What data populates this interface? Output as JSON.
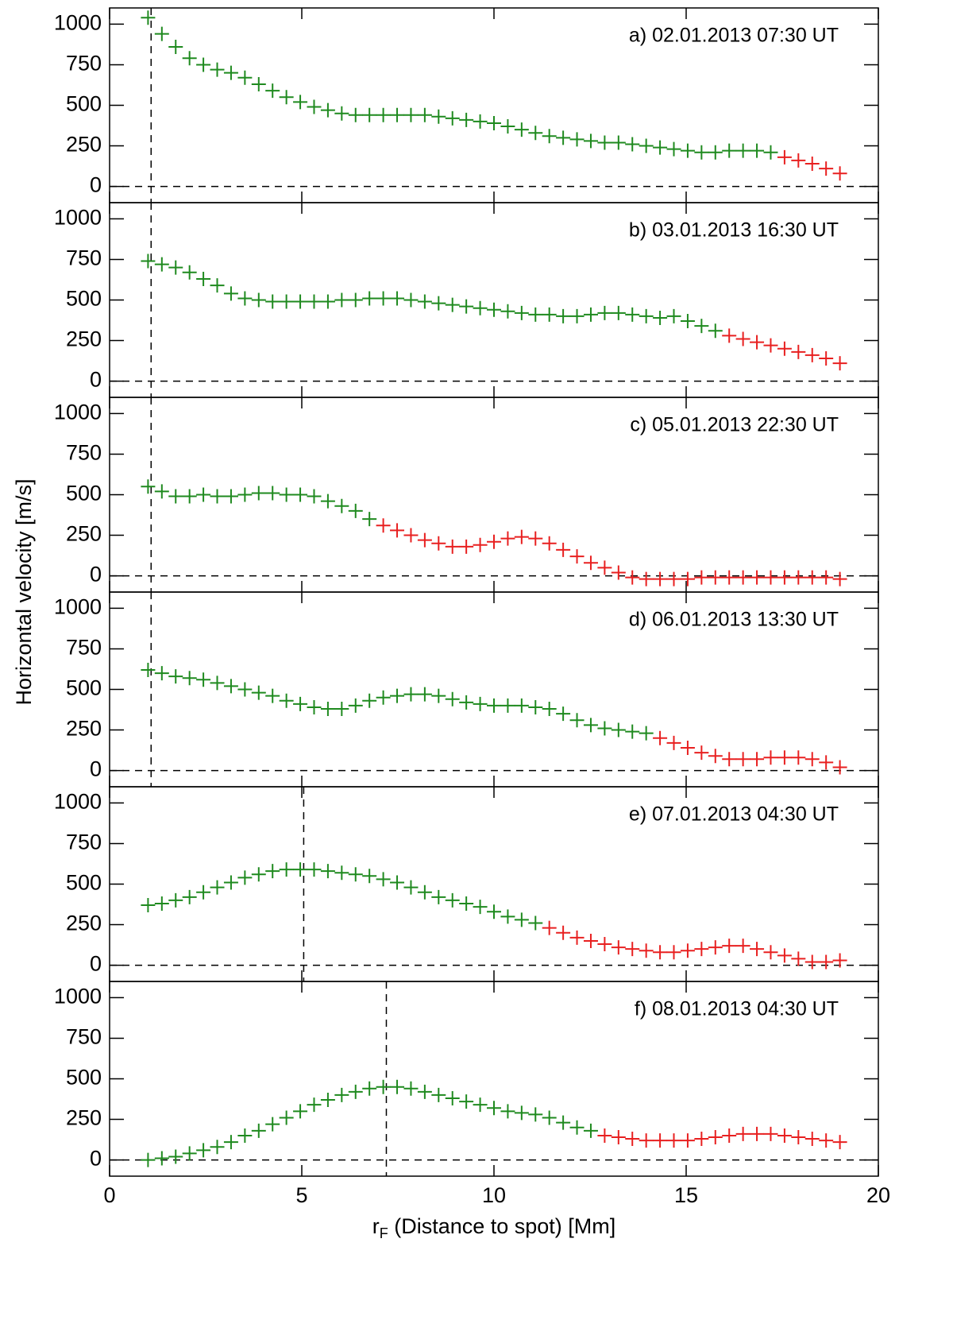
{
  "ylabel": "Horizontal velocity [m/s]",
  "xlabel": {
    "symbol": "r",
    "subscript": "F",
    "text": " (Distance to spot) [Mm]"
  },
  "chart_data": [
    {
      "type": "scatter",
      "annotation": "a) 02.01.2013  07:30 UT",
      "xlim": [
        0,
        20
      ],
      "xticks": [
        0,
        5,
        10,
        15,
        20
      ],
      "ylim": [
        -100,
        1100
      ],
      "yticks": [
        0,
        250,
        500,
        750,
        1000
      ],
      "vline": 1.08,
      "hline": 0,
      "series": [
        {
          "color": "#1f8a1f",
          "x": [
            1.0,
            1.36,
            1.72,
            2.08,
            2.44,
            2.8,
            3.16,
            3.52,
            3.88,
            4.24,
            4.6,
            4.96,
            5.32,
            5.68,
            6.04,
            6.4,
            6.76,
            7.12,
            7.48,
            7.84,
            8.2,
            8.56,
            8.92,
            9.28,
            9.64,
            10.0,
            10.36,
            10.72,
            11.08,
            11.44,
            11.8,
            12.16,
            12.52,
            12.88,
            13.24,
            13.6,
            13.96,
            14.32,
            14.68,
            15.04,
            15.4,
            15.76,
            16.12,
            16.48,
            16.84,
            17.2
          ],
          "values": [
            1040,
            940,
            860,
            790,
            750,
            720,
            700,
            670,
            630,
            590,
            550,
            520,
            490,
            470,
            450,
            440,
            440,
            440,
            440,
            440,
            440,
            430,
            420,
            410,
            400,
            390,
            370,
            350,
            330,
            310,
            300,
            290,
            280,
            270,
            270,
            260,
            250,
            240,
            230,
            220,
            210,
            210,
            220,
            220,
            220,
            210
          ]
        },
        {
          "color": "#e82020",
          "x": [
            17.56,
            17.92,
            18.28,
            18.64,
            19.0
          ],
          "values": [
            180,
            160,
            140,
            110,
            80
          ]
        }
      ]
    },
    {
      "type": "scatter",
      "annotation": "b) 03.01.2013  16:30 UT",
      "xlim": [
        0,
        20
      ],
      "xticks": [
        0,
        5,
        10,
        15,
        20
      ],
      "ylim": [
        -100,
        1100
      ],
      "yticks": [
        0,
        250,
        500,
        750,
        1000
      ],
      "vline": 1.08,
      "hline": 0,
      "series": [
        {
          "color": "#1f8a1f",
          "x": [
            1.0,
            1.36,
            1.72,
            2.08,
            2.44,
            2.8,
            3.16,
            3.52,
            3.88,
            4.24,
            4.6,
            4.96,
            5.32,
            5.68,
            6.04,
            6.4,
            6.76,
            7.12,
            7.48,
            7.84,
            8.2,
            8.56,
            8.92,
            9.28,
            9.64,
            10.0,
            10.36,
            10.72,
            11.08,
            11.44,
            11.8,
            12.16,
            12.52,
            12.88,
            13.24,
            13.6,
            13.96,
            14.32,
            14.68,
            15.04,
            15.4,
            15.76
          ],
          "values": [
            740,
            720,
            700,
            670,
            630,
            590,
            540,
            510,
            500,
            490,
            490,
            490,
            490,
            490,
            500,
            500,
            510,
            510,
            510,
            500,
            490,
            480,
            470,
            460,
            450,
            440,
            430,
            420,
            410,
            410,
            400,
            400,
            410,
            420,
            420,
            410,
            400,
            390,
            400,
            370,
            340,
            310
          ]
        },
        {
          "color": "#e82020",
          "x": [
            16.12,
            16.48,
            16.84,
            17.2,
            17.56,
            17.92,
            18.28,
            18.64,
            19.0
          ],
          "values": [
            280,
            260,
            240,
            220,
            200,
            180,
            160,
            140,
            110
          ]
        }
      ]
    },
    {
      "type": "scatter",
      "annotation": "c) 05.01.2013  22:30 UT",
      "xlim": [
        0,
        20
      ],
      "xticks": [
        0,
        5,
        10,
        15,
        20
      ],
      "ylim": [
        -100,
        1100
      ],
      "yticks": [
        0,
        250,
        500,
        750,
        1000
      ],
      "vline": 1.08,
      "hline": 0,
      "series": [
        {
          "color": "#1f8a1f",
          "x": [
            1.0,
            1.36,
            1.72,
            2.08,
            2.44,
            2.8,
            3.16,
            3.52,
            3.88,
            4.24,
            4.6,
            4.96,
            5.32,
            5.68,
            6.04,
            6.4,
            6.76
          ],
          "values": [
            550,
            520,
            490,
            490,
            500,
            490,
            490,
            500,
            510,
            510,
            500,
            500,
            490,
            460,
            430,
            400,
            350
          ]
        },
        {
          "color": "#e82020",
          "x": [
            7.12,
            7.48,
            7.84,
            8.2,
            8.56,
            8.92,
            9.28,
            9.64,
            10.0,
            10.36,
            10.72,
            11.08,
            11.44,
            11.8,
            12.16,
            12.52,
            12.88,
            13.24,
            13.6,
            13.96,
            14.32,
            14.68,
            15.04,
            15.4,
            15.76,
            16.12,
            16.48,
            16.84,
            17.2,
            17.56,
            17.92,
            18.28,
            18.64,
            19.0
          ],
          "values": [
            310,
            280,
            250,
            220,
            200,
            180,
            180,
            190,
            210,
            230,
            240,
            230,
            200,
            160,
            120,
            80,
            50,
            20,
            -10,
            -20,
            -20,
            -20,
            -20,
            -10,
            -10,
            -10,
            -10,
            -10,
            -10,
            -10,
            -10,
            -10,
            -10,
            -20
          ]
        }
      ]
    },
    {
      "type": "scatter",
      "annotation": "d) 06.01.2013  13:30 UT",
      "xlim": [
        0,
        20
      ],
      "xticks": [
        0,
        5,
        10,
        15,
        20
      ],
      "ylim": [
        -100,
        1100
      ],
      "yticks": [
        0,
        250,
        500,
        750,
        1000
      ],
      "vline": 1.08,
      "hline": 0,
      "series": [
        {
          "color": "#1f8a1f",
          "x": [
            1.0,
            1.36,
            1.72,
            2.08,
            2.44,
            2.8,
            3.16,
            3.52,
            3.88,
            4.24,
            4.6,
            4.96,
            5.32,
            5.68,
            6.04,
            6.4,
            6.76,
            7.12,
            7.48,
            7.84,
            8.2,
            8.56,
            8.92,
            9.28,
            9.64,
            10.0,
            10.36,
            10.72,
            11.08,
            11.44,
            11.8,
            12.16,
            12.52,
            12.88,
            13.24,
            13.6,
            13.96
          ],
          "values": [
            620,
            600,
            580,
            570,
            560,
            540,
            520,
            500,
            480,
            460,
            430,
            410,
            390,
            380,
            380,
            400,
            430,
            450,
            460,
            470,
            470,
            460,
            440,
            420,
            410,
            400,
            400,
            400,
            390,
            380,
            350,
            310,
            280,
            260,
            250,
            240,
            230
          ]
        },
        {
          "color": "#e82020",
          "x": [
            14.32,
            14.68,
            15.04,
            15.4,
            15.76,
            16.12,
            16.48,
            16.84,
            17.2,
            17.56,
            17.92,
            18.28,
            18.64,
            19.0
          ],
          "values": [
            200,
            170,
            140,
            110,
            90,
            70,
            70,
            70,
            80,
            80,
            80,
            70,
            50,
            20
          ]
        }
      ]
    },
    {
      "type": "scatter",
      "annotation": "e) 07.01.2013  04:30 UT",
      "xlim": [
        0,
        20
      ],
      "xticks": [
        0,
        5,
        10,
        15,
        20
      ],
      "ylim": [
        -100,
        1100
      ],
      "yticks": [
        0,
        250,
        500,
        750,
        1000
      ],
      "vline": 5.05,
      "hline": 0,
      "series": [
        {
          "color": "#1f8a1f",
          "x": [
            1.0,
            1.36,
            1.72,
            2.08,
            2.44,
            2.8,
            3.16,
            3.52,
            3.88,
            4.24,
            4.6,
            4.96,
            5.32,
            5.68,
            6.04,
            6.4,
            6.76,
            7.12,
            7.48,
            7.84,
            8.2,
            8.56,
            8.92,
            9.28,
            9.64,
            10.0,
            10.36,
            10.72,
            11.08
          ],
          "values": [
            370,
            380,
            400,
            420,
            450,
            480,
            510,
            540,
            560,
            580,
            590,
            590,
            590,
            580,
            570,
            560,
            550,
            530,
            510,
            480,
            450,
            420,
            400,
            380,
            360,
            330,
            300,
            280,
            260
          ]
        },
        {
          "color": "#e82020",
          "x": [
            11.44,
            11.8,
            12.16,
            12.52,
            12.88,
            13.24,
            13.6,
            13.96,
            14.32,
            14.68,
            15.04,
            15.4,
            15.76,
            16.12,
            16.48,
            16.84,
            17.2,
            17.56,
            17.92,
            18.28,
            18.64,
            19.0
          ],
          "values": [
            230,
            200,
            170,
            150,
            130,
            110,
            100,
            90,
            80,
            80,
            90,
            100,
            110,
            120,
            120,
            100,
            80,
            60,
            40,
            20,
            20,
            30
          ]
        }
      ]
    },
    {
      "type": "scatter",
      "annotation": "f) 08.01.2013  04:30 UT",
      "xlim": [
        0,
        20
      ],
      "xticks": [
        0,
        5,
        10,
        15,
        20
      ],
      "ylim": [
        -100,
        1100
      ],
      "yticks": [
        0,
        250,
        500,
        750,
        1000
      ],
      "vline": 7.2,
      "hline": 0,
      "series": [
        {
          "color": "#1f8a1f",
          "x": [
            1.0,
            1.36,
            1.72,
            2.08,
            2.44,
            2.8,
            3.16,
            3.52,
            3.88,
            4.24,
            4.6,
            4.96,
            5.32,
            5.68,
            6.04,
            6.4,
            6.76,
            7.12,
            7.48,
            7.84,
            8.2,
            8.56,
            8.92,
            9.28,
            9.64,
            10.0,
            10.36,
            10.72,
            11.08,
            11.44,
            11.8,
            12.16,
            12.52
          ],
          "values": [
            0,
            10,
            20,
            40,
            60,
            80,
            110,
            150,
            180,
            220,
            260,
            300,
            340,
            370,
            400,
            420,
            440,
            450,
            450,
            440,
            420,
            400,
            380,
            360,
            340,
            320,
            300,
            290,
            280,
            260,
            230,
            200,
            180
          ]
        },
        {
          "color": "#e82020",
          "x": [
            12.88,
            13.24,
            13.6,
            13.96,
            14.32,
            14.68,
            15.04,
            15.4,
            15.76,
            16.12,
            16.48,
            16.84,
            17.2,
            17.56,
            17.92,
            18.28,
            18.64,
            19.0
          ],
          "values": [
            150,
            140,
            130,
            120,
            120,
            120,
            120,
            130,
            140,
            150,
            160,
            160,
            160,
            150,
            140,
            130,
            120,
            110
          ]
        }
      ]
    }
  ]
}
